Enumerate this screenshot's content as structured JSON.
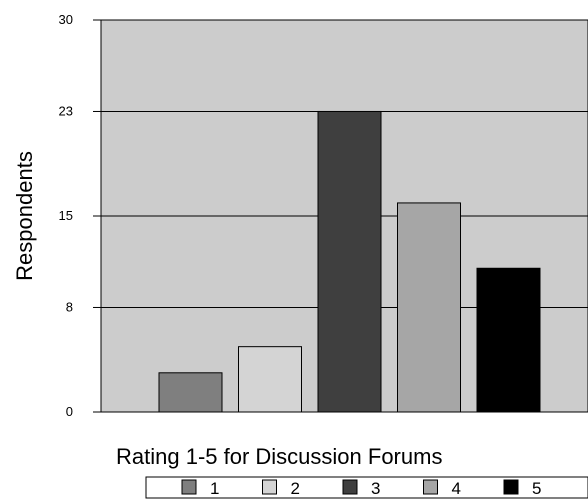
{
  "chart_data": {
    "type": "bar",
    "xlabel": "Rating 1-5 for Discussion Forums",
    "ylabel": "Respondents",
    "ylim": [
      0,
      30
    ],
    "yticks": [
      "0",
      "8",
      "15",
      "23",
      "30"
    ],
    "grid": true,
    "legend_position": "bottom",
    "series": [
      {
        "name": "1",
        "value": 3,
        "color": "#7f7f7f"
      },
      {
        "name": "2",
        "value": 5,
        "color": "#d4d4d4"
      },
      {
        "name": "3",
        "value": 23,
        "color": "#3f3f3f"
      },
      {
        "name": "4",
        "value": 16,
        "color": "#a6a6a6"
      },
      {
        "name": "5",
        "value": 11,
        "color": "#000000"
      }
    ],
    "plot_background": "#cccccc"
  }
}
